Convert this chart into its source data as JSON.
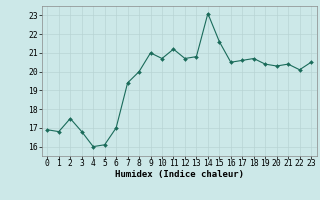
{
  "x": [
    0,
    1,
    2,
    3,
    4,
    5,
    6,
    7,
    8,
    9,
    10,
    11,
    12,
    13,
    14,
    15,
    16,
    17,
    18,
    19,
    20,
    21,
    22,
    23
  ],
  "y": [
    16.9,
    16.8,
    17.5,
    16.8,
    16.0,
    16.1,
    17.0,
    19.4,
    20.0,
    21.0,
    20.7,
    21.2,
    20.7,
    20.8,
    23.1,
    21.6,
    20.5,
    20.6,
    20.7,
    20.4,
    20.3,
    20.4,
    20.1,
    20.5
  ],
  "line_color": "#1a6b5a",
  "marker_color": "#1a6b5a",
  "bg_color": "#cce8e8",
  "grid_color_major": "#b8d4d4",
  "grid_color_minor": "#b8d4d4",
  "axis_label": "Humidex (Indice chaleur)",
  "ylim": [
    15.5,
    23.5
  ],
  "xlim": [
    -0.5,
    23.5
  ],
  "yticks": [
    16,
    17,
    18,
    19,
    20,
    21,
    22,
    23
  ],
  "xticks": [
    0,
    1,
    2,
    3,
    4,
    5,
    6,
    7,
    8,
    9,
    10,
    11,
    12,
    13,
    14,
    15,
    16,
    17,
    18,
    19,
    20,
    21,
    22,
    23
  ],
  "label_fontsize": 6.5,
  "tick_fontsize": 5.8
}
